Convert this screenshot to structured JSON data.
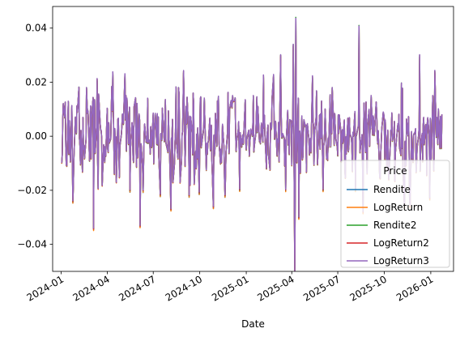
{
  "chart_data": {
    "type": "line",
    "title": "",
    "xlabel": "Date",
    "ylabel": "",
    "ylim": [
      -0.05,
      0.048
    ],
    "xlim": [
      "2023-12-15",
      "2026-02-15"
    ],
    "grid": false,
    "legend": {
      "title": "Price",
      "placement": "bottom-right"
    },
    "x_ticks": [
      "2024-01",
      "2024-04",
      "2024-07",
      "2024-10",
      "2025-01",
      "2025-04",
      "2025-07",
      "2025-10",
      "2026-01"
    ],
    "y_ticks": [
      "-0.04",
      "-0.02",
      "0.00",
      "0.02",
      "0.04"
    ],
    "x_start": "2024-01-02",
    "x_end": "2026-01-23",
    "series": [
      {
        "name": "Rendite",
        "color": "#1f77b4"
      },
      {
        "name": "LogReturn",
        "color": "#ff7f0e"
      },
      {
        "name": "Rendite2",
        "color": "#2ca02c"
      },
      {
        "name": "LogReturn2",
        "color": "#d62728"
      },
      {
        "name": "LogReturn3",
        "color": "#9467bd"
      }
    ],
    "key_points": [
      {
        "x": "2024-01-02",
        "y": -0.01
      },
      {
        "x": "2024-01-05",
        "y": 0.012
      },
      {
        "x": "2024-01-12",
        "y": -0.011
      },
      {
        "x": "2024-01-25",
        "y": -0.018
      },
      {
        "x": "2024-02-20",
        "y": 0.018
      },
      {
        "x": "2024-03-05",
        "y": -0.034
      },
      {
        "x": "2024-03-12",
        "y": 0.021
      },
      {
        "x": "2024-04-15",
        "y": -0.014
      },
      {
        "x": "2024-05-10",
        "y": 0.014
      },
      {
        "x": "2024-06-05",
        "y": -0.033
      },
      {
        "x": "2024-06-20",
        "y": 0.014
      },
      {
        "x": "2024-08-05",
        "y": -0.027
      },
      {
        "x": "2024-08-20",
        "y": 0.018
      },
      {
        "x": "2024-09-10",
        "y": -0.022
      },
      {
        "x": "2024-11-05",
        "y": 0.013
      },
      {
        "x": "2024-11-20",
        "y": -0.022
      },
      {
        "x": "2024-12-05",
        "y": 0.015
      },
      {
        "x": "2025-01-15",
        "y": 0.015
      },
      {
        "x": "2025-02-10",
        "y": -0.012
      },
      {
        "x": "2025-03-10",
        "y": 0.03
      },
      {
        "x": "2025-03-20",
        "y": -0.02
      },
      {
        "x": "2025-04-04",
        "y": 0.034
      },
      {
        "x": "2025-04-07",
        "y": -0.05
      },
      {
        "x": "2025-04-09",
        "y": 0.044
      },
      {
        "x": "2025-04-15",
        "y": -0.03
      },
      {
        "x": "2025-05-12",
        "y": 0.022
      },
      {
        "x": "2025-06-02",
        "y": -0.02
      },
      {
        "x": "2025-06-20",
        "y": 0.018
      },
      {
        "x": "2025-07-15",
        "y": -0.012
      },
      {
        "x": "2025-08-05",
        "y": -0.02
      },
      {
        "x": "2025-08-12",
        "y": 0.041
      },
      {
        "x": "2025-08-20",
        "y": -0.028
      },
      {
        "x": "2025-09-05",
        "y": 0.015
      },
      {
        "x": "2025-10-10",
        "y": -0.016
      },
      {
        "x": "2025-11-20",
        "y": -0.022
      },
      {
        "x": "2025-12-10",
        "y": 0.03
      },
      {
        "x": "2026-01-05",
        "y": 0.015
      },
      {
        "x": "2026-01-15",
        "y": -0.003
      },
      {
        "x": "2026-01-23",
        "y": 0.008
      }
    ]
  }
}
